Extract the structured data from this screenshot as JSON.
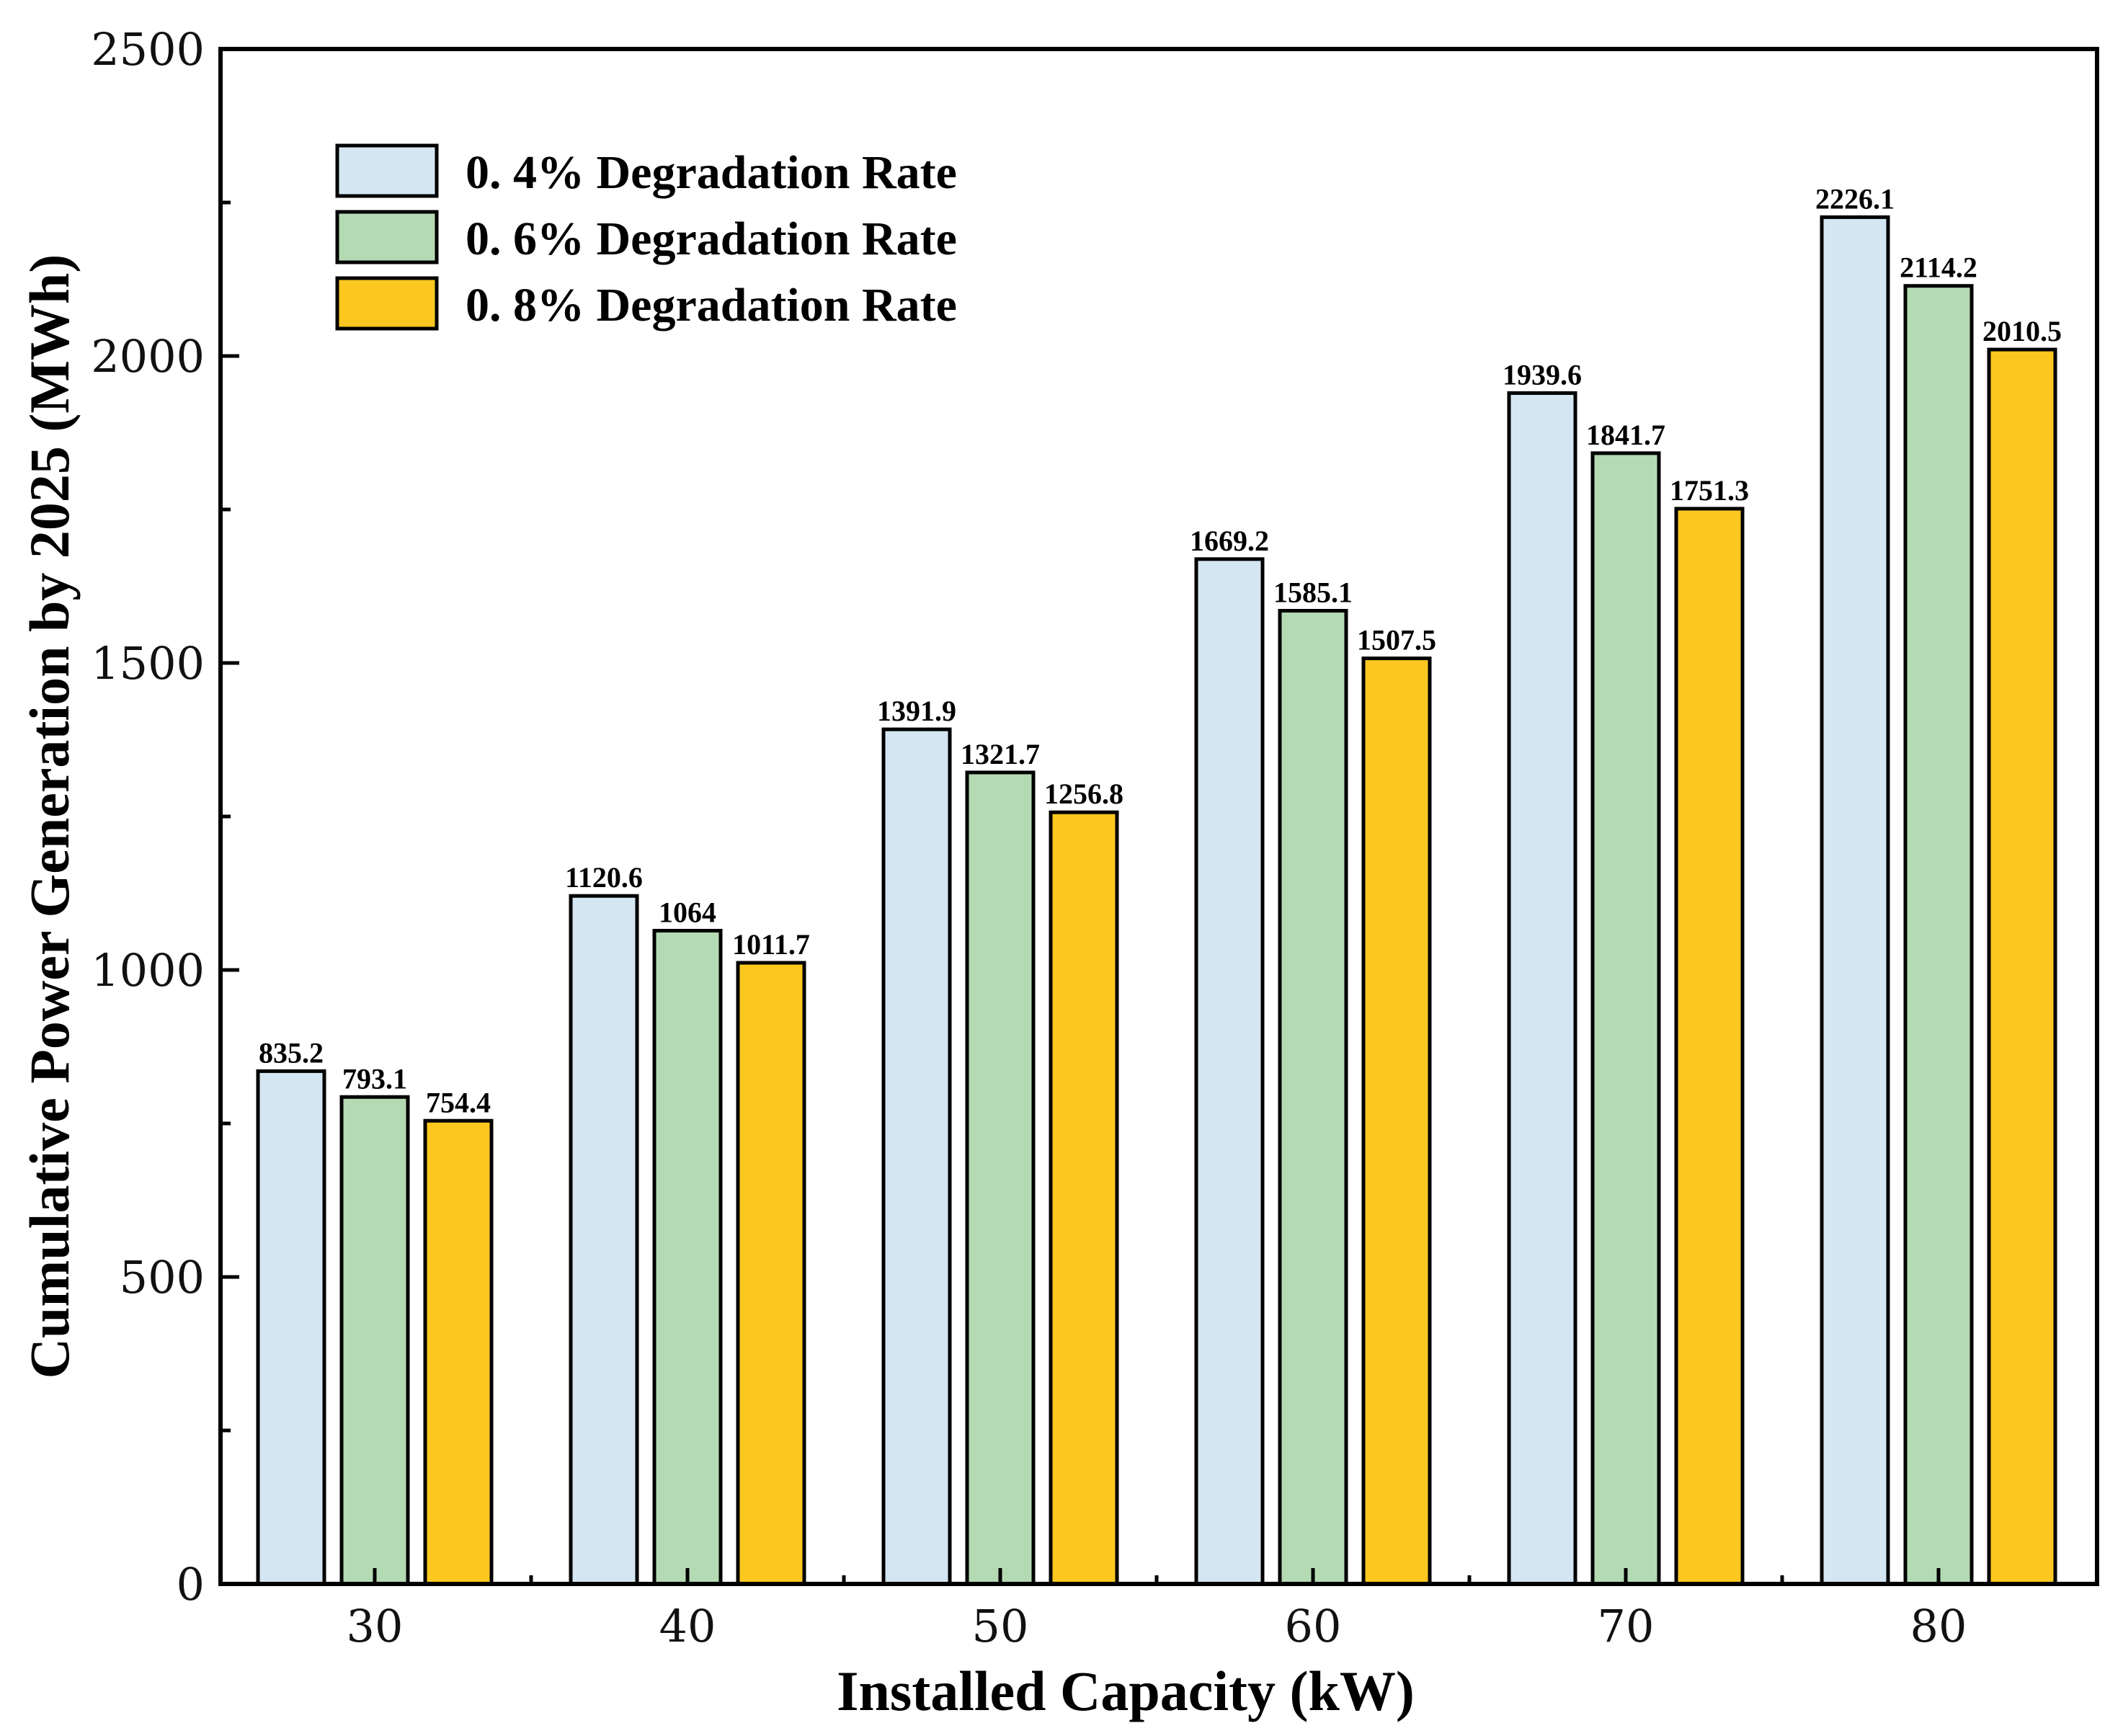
{
  "chart_data": {
    "type": "bar",
    "title": "",
    "xlabel": "Installed Capacity (kW)",
    "ylabel": "Cumulative Power Generation by 2025 (MWh)",
    "categories": [
      "30",
      "40",
      "50",
      "60",
      "70",
      "80"
    ],
    "ylim": [
      0,
      2500
    ],
    "yticks": [
      "0",
      "500",
      "1000",
      "1500",
      "2000",
      "2500"
    ],
    "legend_position": "top-left",
    "series": [
      {
        "name": "0. 4% Degradation Rate",
        "color": "#d4e6f1",
        "values": [
          835.2,
          1120.6,
          1391.9,
          1669.2,
          1939.6,
          2226.1
        ],
        "labels": [
          "835.2",
          "1120.6",
          "1391.9",
          "1669.2",
          "1939.6",
          "2226.1"
        ]
      },
      {
        "name": "0. 6% Degradation Rate",
        "color": "#b4dab4",
        "values": [
          793.1,
          1064,
          1321.7,
          1585.1,
          1841.7,
          2114.2
        ],
        "labels": [
          "793.1",
          "1064",
          "1321.7",
          "1585.1",
          "1841.7",
          "2114.2"
        ]
      },
      {
        "name": "0. 8% Degradation Rate",
        "color": "#fcc820",
        "values": [
          754.4,
          1011.7,
          1256.8,
          1507.5,
          1751.3,
          2010.5
        ],
        "labels": [
          "754.4",
          "1011.7",
          "1256.8",
          "1507.5",
          "1751.3",
          "2010.5"
        ]
      }
    ]
  }
}
